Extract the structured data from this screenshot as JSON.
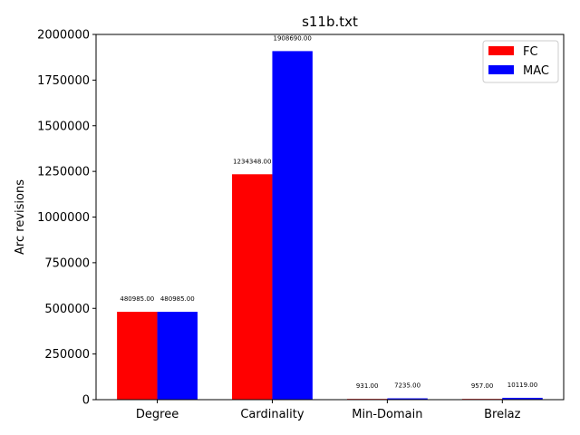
{
  "chart_data": {
    "type": "bar",
    "title": "s11b.txt",
    "xlabel": "",
    "ylabel": "Arc revisions",
    "categories": [
      "Degree",
      "Cardinality",
      "Min-Domain",
      "Brelaz"
    ],
    "series": [
      {
        "name": "FC",
        "color": "#ff0000",
        "values": [
          480985,
          1234348,
          931,
          957
        ],
        "labels": [
          "480985.00",
          "1234348.00",
          "931.00",
          "957.00"
        ]
      },
      {
        "name": "MAC",
        "color": "#0000ff",
        "values": [
          480985,
          1908690,
          7235,
          10119
        ],
        "labels": [
          "480985.00",
          "1908690.00",
          "7235.00",
          "10119.00"
        ]
      }
    ],
    "ylim": [
      0,
      2000000
    ],
    "yticks": [
      0,
      250000,
      500000,
      750000,
      1000000,
      1250000,
      1500000,
      1750000,
      2000000
    ],
    "ytick_labels": [
      "0",
      "250000",
      "500000",
      "750000",
      "1000000",
      "1250000",
      "1500000",
      "1750000",
      "2000000"
    ],
    "legend_position": "top-right",
    "grid": false
  }
}
